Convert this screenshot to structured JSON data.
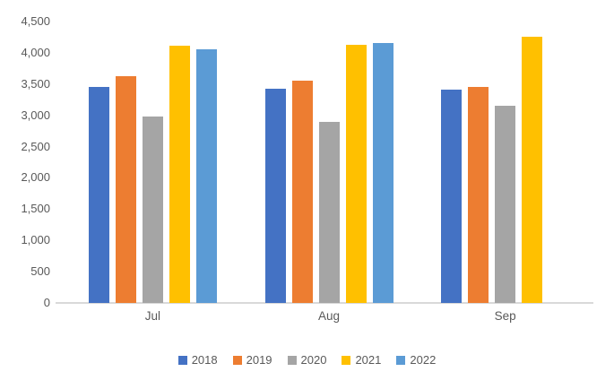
{
  "chart_data": {
    "type": "bar",
    "title": "",
    "categories": [
      "Jul",
      "Aug",
      "Sep"
    ],
    "series": [
      {
        "name": "2018",
        "color": "#4472C4",
        "values": [
          3450,
          3430,
          3410
        ]
      },
      {
        "name": "2019",
        "color": "#ED7D31",
        "values": [
          3630,
          3560,
          3460
        ]
      },
      {
        "name": "2020",
        "color": "#A5A5A5",
        "values": [
          2980,
          2900,
          3160
        ]
      },
      {
        "name": "2021",
        "color": "#FFC000",
        "values": [
          4110,
          4130,
          4260
        ]
      },
      {
        "name": "2022",
        "color": "#5B9BD5",
        "values": [
          4060,
          4160,
          null
        ]
      }
    ],
    "ylim": [
      0,
      4500
    ],
    "y_tick_step": 500,
    "y_tick_labels": [
      "0",
      "500",
      "1,000",
      "1,500",
      "2,000",
      "2,500",
      "3,000",
      "3,500",
      "4,000",
      "4,500"
    ],
    "grid": false,
    "legend_position": "bottom",
    "axis_color": "#D9D9D9",
    "text_color": "#595959"
  }
}
